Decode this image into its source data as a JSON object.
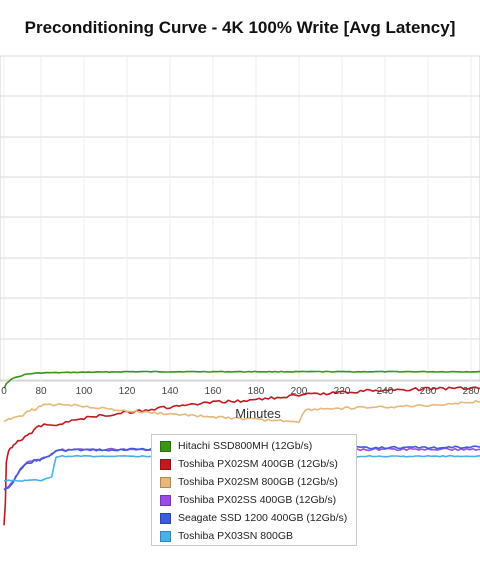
{
  "chart_data": {
    "type": "line",
    "title": "Preconditioning Curve - 4K 100% Write [Avg Latency]",
    "xlabel": "Minutes",
    "ylabel": "",
    "xlim": [
      0,
      285
    ],
    "xticks": [
      0,
      80,
      100,
      120,
      140,
      160,
      180,
      200,
      220,
      240,
      260,
      280
    ],
    "xtick_labels": [
      "0",
      "80",
      "100",
      "120",
      "140",
      "160",
      "180",
      "200",
      "220",
      "240",
      "260",
      "280"
    ],
    "grid": true,
    "legend_position": "bottom",
    "series": [
      {
        "name": "Hitachi SSD800MH (12Gb/s)",
        "color": "#3a9416",
        "x": [
          0,
          5,
          15,
          30,
          50,
          80,
          120,
          160,
          200,
          240,
          285
        ],
        "values": [
          0.68,
          0.672,
          0.664,
          0.66,
          0.655,
          0.653,
          0.651,
          0.651,
          0.651,
          0.651,
          0.651
        ]
      },
      {
        "name": "Toshiba PX02SM 400GB (12Gb/s)",
        "color": "#c0191f",
        "x": [
          0,
          3,
          5,
          10,
          15,
          20,
          30,
          40,
          50,
          60,
          70,
          80,
          90,
          100,
          110,
          120,
          140,
          160,
          180,
          200,
          220,
          240,
          260,
          285
        ],
        "values": [
          0.92,
          0.88,
          0.81,
          0.79,
          0.784,
          0.78,
          0.772,
          0.768,
          0.76,
          0.758,
          0.75,
          0.745,
          0.742,
          0.732,
          0.727,
          0.722,
          0.713,
          0.705,
          0.7,
          0.692,
          0.687,
          0.683,
          0.681,
          0.679
        ]
      },
      {
        "name": "Toshiba PX02SM 800GB (12Gb/s)",
        "color": "#e8b87a",
        "x": [
          0,
          10,
          20,
          30,
          40,
          50,
          60,
          70,
          80,
          90,
          100,
          110,
          120,
          140,
          160,
          180,
          200,
          203,
          210,
          220,
          240,
          260,
          285
        ],
        "values": [
          0.738,
          0.734,
          0.731,
          0.728,
          0.727,
          0.722,
          0.718,
          0.716,
          0.71,
          0.708,
          0.711,
          0.716,
          0.72,
          0.725,
          0.73,
          0.735,
          0.738,
          0.718,
          0.716,
          0.715,
          0.713,
          0.71,
          0.703
        ]
      },
      {
        "name": "Toshiba PX02SS 400GB (12Gb/s)",
        "color": "#9b4ce6",
        "x": [
          0,
          10,
          20,
          30,
          40,
          50,
          60,
          70,
          75,
          80,
          85,
          87,
          90,
          100,
          120,
          140,
          160,
          180,
          200,
          220,
          240,
          260,
          285
        ],
        "values": [
          0.857,
          0.852,
          0.842,
          0.828,
          0.818,
          0.81,
          0.808,
          0.806,
          0.805,
          0.804,
          0.795,
          0.79,
          0.788,
          0.787,
          0.787,
          0.787,
          0.787,
          0.787,
          0.787,
          0.787,
          0.787,
          0.787,
          0.787
        ]
      },
      {
        "name": "Seagate SSD 1200 400GB (12Gb/s)",
        "color": "#3d5de0",
        "x": [
          0,
          10,
          20,
          30,
          40,
          50,
          60,
          70,
          75,
          80,
          85,
          87,
          90,
          100,
          120,
          140,
          160,
          180,
          200,
          220,
          240,
          260,
          285
        ],
        "values": [
          0.858,
          0.853,
          0.843,
          0.829,
          0.819,
          0.811,
          0.809,
          0.807,
          0.806,
          0.805,
          0.795,
          0.79,
          0.789,
          0.788,
          0.787,
          0.786,
          0.785,
          0.785,
          0.785,
          0.784,
          0.784,
          0.784,
          0.783
        ]
      },
      {
        "name": "Toshiba PX03SN 800GB",
        "color": "#48b0ea",
        "x": [
          0,
          10,
          20,
          30,
          40,
          50,
          60,
          70,
          80,
          85,
          87,
          90,
          100,
          120,
          140,
          160,
          180,
          200,
          220,
          240,
          260,
          285
        ],
        "values": [
          0.842,
          0.842,
          0.842,
          0.842,
          0.842,
          0.841,
          0.841,
          0.841,
          0.841,
          0.835,
          0.8,
          0.799,
          0.799,
          0.799,
          0.799,
          0.799,
          0.799,
          0.799,
          0.799,
          0.799,
          0.799,
          0.799
        ]
      }
    ]
  }
}
